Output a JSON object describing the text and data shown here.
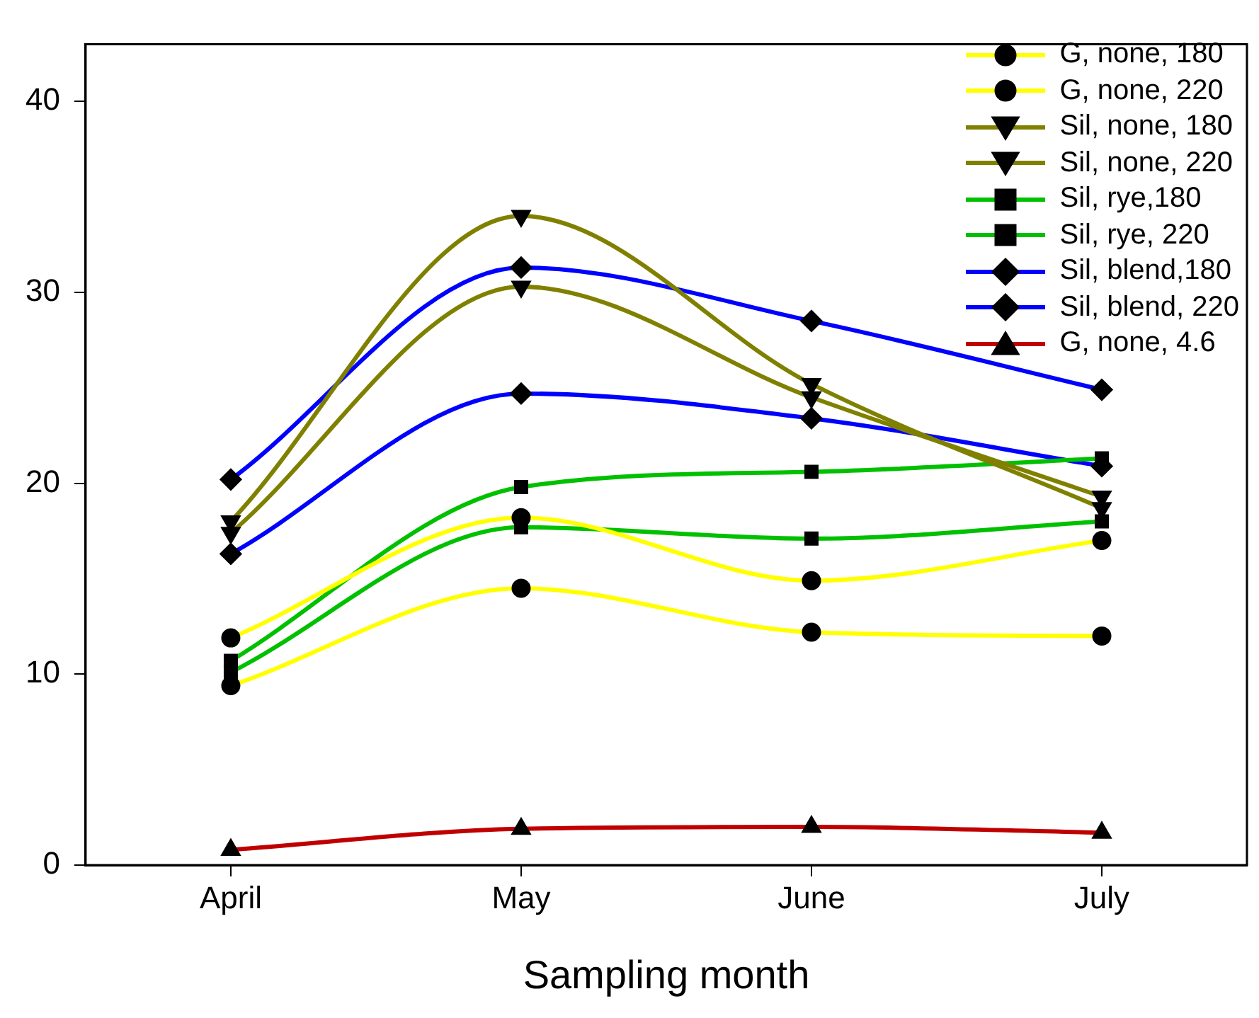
{
  "chart_data": {
    "type": "line",
    "xlabel": "Sampling month",
    "categories": [
      "April",
      "May",
      "June",
      "July"
    ],
    "ylim": [
      0,
      43
    ],
    "yticks": [
      0,
      10,
      20,
      30,
      40
    ],
    "grid": false,
    "legend": "top right",
    "series": [
      {
        "name": "G, none, 180",
        "color": "#ffff00",
        "marker": "circle",
        "values": [
          9.4,
          14.5,
          12.2,
          12.0
        ]
      },
      {
        "name": "G, none, 220",
        "color": "#ffff00",
        "marker": "circle",
        "values": [
          11.9,
          18.2,
          14.9,
          17.0
        ]
      },
      {
        "name": "Sil, none, 180",
        "color": "#808000",
        "marker": "triangle-down",
        "values": [
          17.4,
          30.3,
          24.5,
          19.3
        ]
      },
      {
        "name": "Sil, none, 220",
        "color": "#808000",
        "marker": "triangle-down",
        "values": [
          18.0,
          34.0,
          25.2,
          18.7
        ]
      },
      {
        "name": "Sil, rye,180",
        "color": "#00c000",
        "marker": "square",
        "values": [
          10.1,
          17.7,
          17.1,
          18.0
        ]
      },
      {
        "name": "Sil, rye, 220",
        "color": "#00c000",
        "marker": "square",
        "values": [
          10.7,
          19.8,
          20.6,
          21.3
        ]
      },
      {
        "name": "Sil, blend,180",
        "color": "#0000ff",
        "marker": "diamond",
        "values": [
          16.3,
          24.7,
          23.4,
          20.9
        ]
      },
      {
        "name": "Sil, blend, 220",
        "color": "#0000ff",
        "marker": "diamond",
        "values": [
          20.2,
          31.3,
          28.5,
          24.9
        ]
      },
      {
        "name": "G, none, 4.6",
        "color": "#c00000",
        "marker": "triangle",
        "values": [
          0.8,
          1.9,
          2.0,
          1.7
        ]
      }
    ]
  }
}
